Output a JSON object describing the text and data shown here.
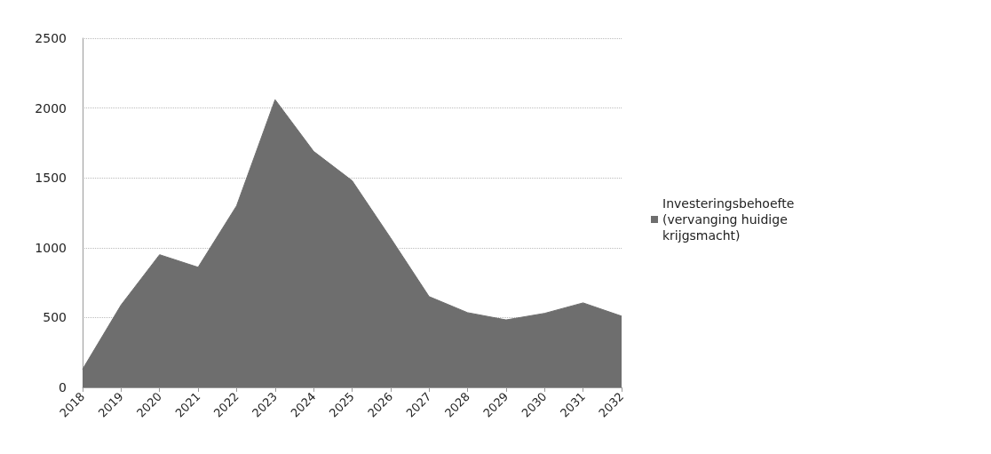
{
  "chart_data": {
    "type": "area",
    "categories": [
      "2018",
      "2019",
      "2020",
      "2021",
      "2022",
      "2023",
      "2024",
      "2025",
      "2026",
      "2027",
      "2028",
      "2029",
      "2030",
      "2031",
      "2032"
    ],
    "series": [
      {
        "name": "Investeringsbehoefte\n(vervanging huidige\nkrijgsmacht)",
        "color": "#6e6e6e",
        "values": [
          130,
          590,
          950,
          860,
          1300,
          2060,
          1690,
          1480,
          1070,
          650,
          535,
          483,
          530,
          605,
          510
        ]
      }
    ],
    "ylim": [
      0,
      2500
    ],
    "yticks": [
      0,
      500,
      1000,
      1500,
      2000,
      2500
    ],
    "grid": "y",
    "legend": "right"
  }
}
